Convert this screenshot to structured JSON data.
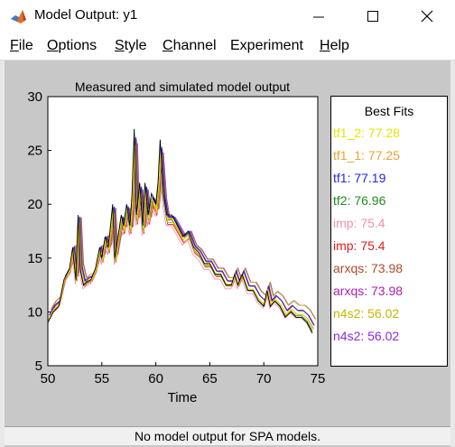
{
  "window": {
    "title": "Model Output: y1",
    "app_icon": "matlab-icon",
    "controls": [
      "minimize-icon",
      "maximize-icon",
      "close-icon"
    ]
  },
  "menubar": {
    "items": [
      {
        "key": "F",
        "rest": "ile"
      },
      {
        "key": "O",
        "rest": "ptions"
      },
      {
        "key": "S",
        "rest": "tyle"
      },
      {
        "key": "C",
        "rest": "hannel"
      },
      {
        "key": "",
        "rest": "Experiment"
      },
      {
        "key": "H",
        "rest": "elp"
      }
    ]
  },
  "chart_data": {
    "type": "line",
    "title": "Measured and simulated model output",
    "xlabel": "Time",
    "ylabel": "",
    "xlim": [
      50,
      75
    ],
    "ylim": [
      5,
      30
    ],
    "xticks": [
      "50",
      "55",
      "60",
      "65",
      "70",
      "75"
    ],
    "yticks": [
      "5",
      "10",
      "15",
      "20",
      "25",
      "30"
    ],
    "grid": false,
    "measured": {
      "color": "#000000",
      "x": [
        50,
        50.5,
        51,
        51.5,
        52,
        52.3,
        52.6,
        52.8,
        53,
        53.3,
        53.6,
        54,
        54.4,
        54.8,
        55,
        55.3,
        55.6,
        56,
        56.2,
        56.5,
        56.8,
        57,
        57.3,
        57.6,
        57.8,
        58,
        58.2,
        58.5,
        58.8,
        59,
        59.3,
        59.6,
        60,
        60.2,
        60.4,
        60.7,
        61,
        61.5,
        62,
        62.5,
        63,
        63.5,
        64,
        64.5,
        65,
        65.5,
        66,
        66.5,
        67,
        67.3,
        67.6,
        68,
        68.5,
        69,
        69.5,
        70,
        70.3,
        70.6,
        71,
        71.5,
        72,
        72.5,
        73,
        73.5,
        74,
        74.5
      ],
      "y": [
        9,
        10,
        10.5,
        13,
        14,
        16,
        13,
        19,
        14,
        12.5,
        12.8,
        13,
        14,
        16,
        15,
        17,
        16,
        20,
        15,
        17,
        19,
        18,
        20,
        18,
        21,
        27,
        19,
        22,
        18,
        22,
        19,
        21,
        20,
        22,
        26,
        21,
        19,
        19,
        18,
        17,
        17.5,
        16,
        15.5,
        14.5,
        14.5,
        13.5,
        13.5,
        12.5,
        12.5,
        13.5,
        12.5,
        13.5,
        12,
        12,
        11,
        10.5,
        12,
        10.5,
        11,
        10.5,
        9.5,
        10,
        9.5,
        9.5,
        9,
        8
      ]
    },
    "series": [
      {
        "name": "tf1_2: 77.28",
        "color": "#e6e600",
        "dx": 0.05,
        "scale": 0.93,
        "dy": -0.1
      },
      {
        "name": "tf1_1: 77.25",
        "color": "#f0a030",
        "dx": 0.1,
        "scale": 0.9,
        "dy": -0.3
      },
      {
        "name": "tf1: 77.19",
        "color": "#1f24e6",
        "dx": 0.15,
        "scale": 0.92,
        "dy": 0.2
      },
      {
        "name": "tf2: 76.96",
        "color": "#1f8c1f",
        "dx": 0.0,
        "scale": 0.94,
        "dy": -0.2
      },
      {
        "name": "imp: 75.4",
        "color": "#f290b0",
        "dx": -0.05,
        "scale": 0.9,
        "dy": -0.6
      },
      {
        "name": "imp: 75.4",
        "color": "#e61a1a",
        "dx": 0.1,
        "scale": 0.88,
        "dy": -0.4
      },
      {
        "name": "arxqs: 73.98",
        "color": "#b04a28",
        "dx": 0.2,
        "scale": 0.91,
        "dy": 0.1
      },
      {
        "name": "arxqs: 73.98",
        "color": "#b01cb0",
        "dx": 0.12,
        "scale": 0.91,
        "dy": 0.15
      },
      {
        "name": "n4s2: 56.02",
        "color": "#c8b400",
        "dx": 0.25,
        "scale": 0.85,
        "dy": 0.3
      },
      {
        "name": "n4s2: 56.02",
        "color": "#8a2be2",
        "dx": 0.3,
        "scale": 0.86,
        "dy": 0.35
      }
    ],
    "legend": {
      "title": "Best Fits",
      "placement": "right"
    }
  },
  "status": {
    "text": "No model output for SPA models."
  }
}
